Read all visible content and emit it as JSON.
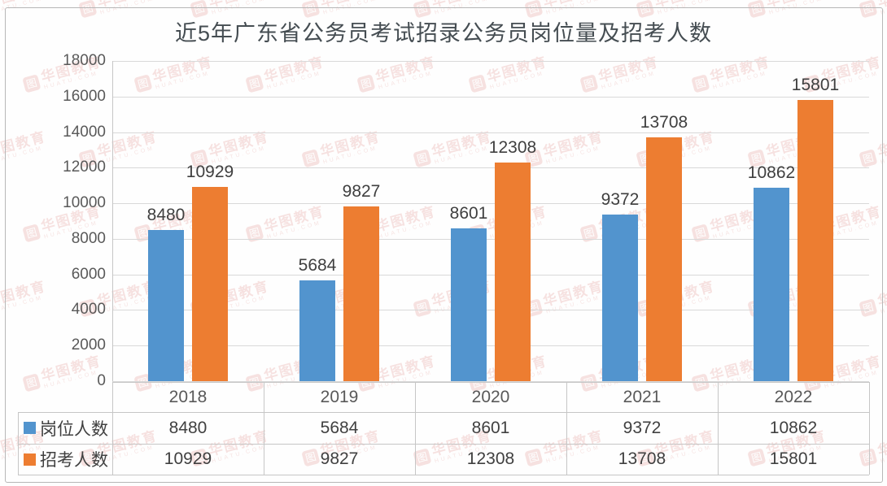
{
  "watermark": {
    "brand": "华图教育",
    "sub": "HUATU.COM",
    "icon_char": "图",
    "color": "#c83c32"
  },
  "chart_data": {
    "type": "bar",
    "title": "近5年广东省公务员考试招录公务员岗位量及招考人数",
    "title_color": "#454d52",
    "categories": [
      "2018",
      "2019",
      "2020",
      "2021",
      "2022"
    ],
    "series": [
      {
        "key": "positions",
        "name": "岗位人数",
        "color": "#5294CE",
        "values": [
          8480,
          5684,
          8601,
          9372,
          10862
        ]
      },
      {
        "key": "applicants",
        "name": "招考人数",
        "color": "#ED7D31",
        "values": [
          10929,
          9827,
          12308,
          13708,
          15801
        ]
      }
    ],
    "xlabel": "",
    "ylabel": "",
    "ylim": [
      0,
      18000
    ],
    "ytick_step": 2000,
    "yticks": [
      "18000",
      "16000",
      "14000",
      "12000",
      "10000",
      "8000",
      "6000",
      "4000",
      "2000",
      "0"
    ],
    "grid": true,
    "gridline_color": "#d9d9d9",
    "axis_line_color": "#c6c6c6",
    "axis_label_color": "#595959",
    "bar_label_color": "#3f3f3f",
    "legend_position": "data-table-left",
    "show_data_table": true
  }
}
